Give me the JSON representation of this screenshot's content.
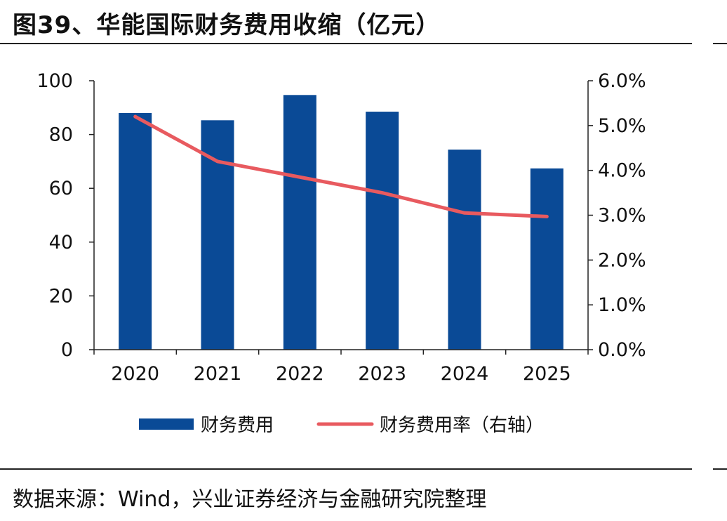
{
  "title": "图39、华能国际财务费用收缩（亿元）",
  "source": "数据来源：Wind，兴业证券经济与金融研究院整理",
  "colors": {
    "bar": "#0a4a96",
    "line": "#e85a5f",
    "axis": "#222222"
  },
  "chart_data": {
    "type": "bar",
    "categories": [
      "2020",
      "2021",
      "2022",
      "2023",
      "2024",
      "2025"
    ],
    "series": [
      {
        "name": "财务费用",
        "kind": "bar",
        "axis": "left",
        "values": [
          88.0,
          85.3,
          94.7,
          88.5,
          74.4,
          67.4
        ]
      },
      {
        "name": "财务费用率（右轴）",
        "kind": "line",
        "axis": "right",
        "values": [
          5.2,
          4.2,
          3.85,
          3.5,
          3.05,
          2.97
        ]
      }
    ],
    "ylim_left": [
      0,
      100
    ],
    "yticks_left": [
      "0",
      "20",
      "40",
      "60",
      "80",
      "100"
    ],
    "ylim_right": [
      0,
      6
    ],
    "yticks_right": [
      "0.0%",
      "1.0%",
      "2.0%",
      "3.0%",
      "4.0%",
      "5.0%",
      "6.0%"
    ],
    "grid": false,
    "legend_position": "bottom"
  }
}
